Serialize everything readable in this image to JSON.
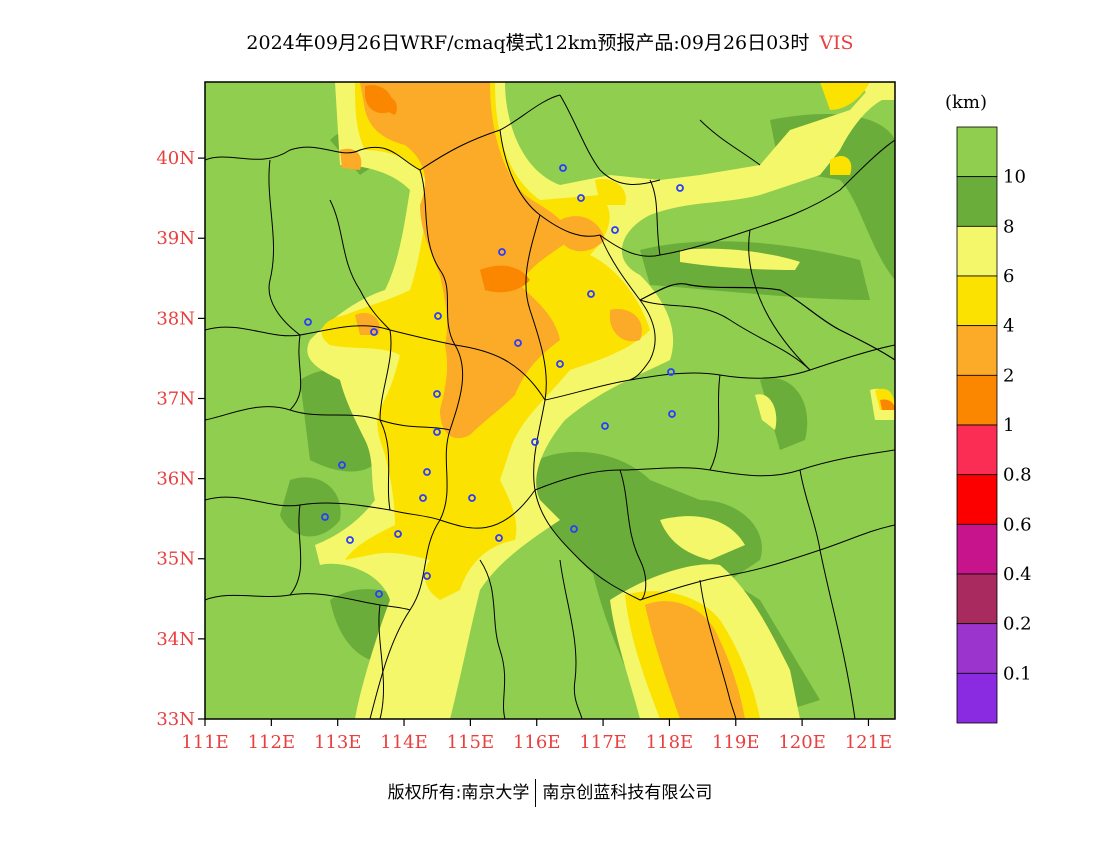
{
  "title": {
    "main": "2024年09月26日WRF/cmaq模式12km预报产品:09月26日03时",
    "variable": "VIS"
  },
  "map": {
    "lon_ticks": [
      "111E",
      "112E",
      "113E",
      "114E",
      "115E",
      "116E",
      "117E",
      "118E",
      "119E",
      "120E",
      "121E"
    ],
    "lat_ticks": [
      "33N",
      "34N",
      "35N",
      "36N",
      "37N",
      "38N",
      "39N",
      "40N"
    ],
    "lon_range": [
      111,
      121.4
    ],
    "lat_range": [
      33,
      40.95
    ],
    "colors": {
      "class_10_plus": "#8fce4e",
      "class_8_10": "#6aad3a",
      "class_6_8": "#f4f76a",
      "class_4_6": "#fce200",
      "class_2_4": "#fbab28",
      "class_1_2": "#fb8600",
      "city_marker": "#2a3cff",
      "boundary": "#000000"
    }
  },
  "colorbar": {
    "unit": "(km)",
    "labels": [
      "10",
      "8",
      "6",
      "4",
      "2",
      "1",
      "0.8",
      "0.6",
      "0.4",
      "0.2",
      "0.1"
    ],
    "colors": [
      "#8fce4e",
      "#6aad3a",
      "#f4f76a",
      "#fce200",
      "#fbab28",
      "#fb8600",
      "#fb2d55",
      "#fc0000",
      "#c8148c",
      "#a82a5e",
      "#9a34cc",
      "#8a2be2"
    ]
  },
  "footer": {
    "copyright": "版权所有:南京大学",
    "company": "南京创蓝科技有限公司"
  }
}
